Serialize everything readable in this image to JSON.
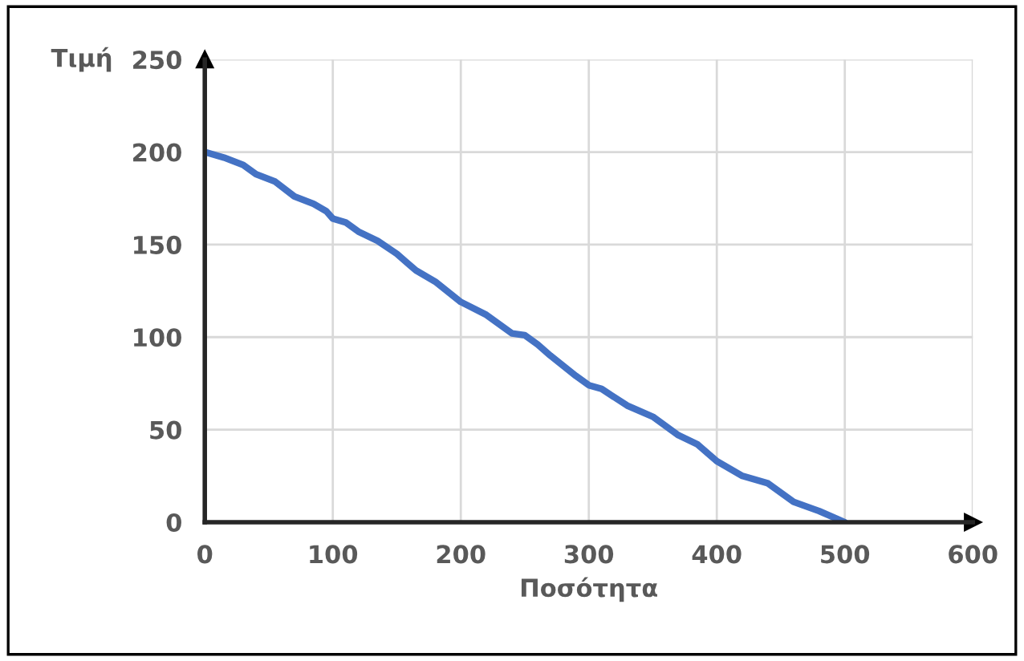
{
  "chart_data": {
    "type": "line",
    "xlabel": "Ποσότητα",
    "ylabel": "Τιμή",
    "x": [
      0,
      15,
      30,
      40,
      55,
      70,
      85,
      95,
      100,
      110,
      120,
      135,
      150,
      165,
      180,
      200,
      220,
      240,
      250,
      260,
      270,
      290,
      300,
      310,
      330,
      350,
      370,
      385,
      400,
      420,
      440,
      460,
      480,
      500
    ],
    "series": [
      {
        "color": "#4472c4",
        "values": [
          200,
          197,
          193,
          188,
          184,
          176,
          172,
          168,
          164,
          162,
          157,
          152,
          145,
          136,
          130,
          119,
          112,
          102,
          101,
          96,
          90,
          79,
          74,
          72,
          63,
          57,
          47,
          42,
          33,
          25,
          21,
          11,
          6,
          0
        ]
      }
    ],
    "xlim": [
      0,
      600
    ],
    "xticks": [
      0,
      100,
      200,
      300,
      400,
      500,
      600
    ],
    "ylim": [
      0,
      250
    ],
    "yticks": [
      0,
      50,
      100,
      150,
      200,
      250
    ],
    "grid": true,
    "legend": false,
    "marker": "none",
    "line_style": "solid"
  }
}
